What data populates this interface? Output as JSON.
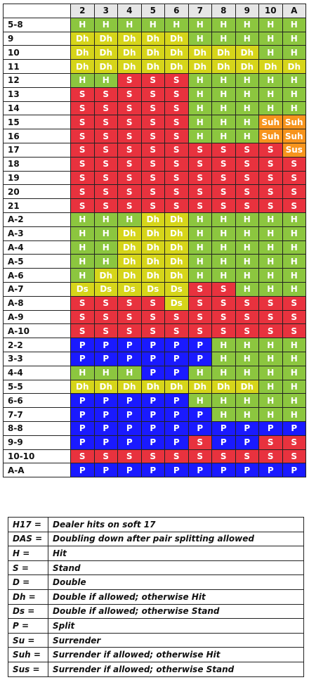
{
  "grid": {
    "dealer_cards": [
      "2",
      "3",
      "4",
      "5",
      "6",
      "7",
      "8",
      "9",
      "10",
      "A"
    ],
    "rows": [
      {
        "hand": "5-8",
        "cells": [
          "H",
          "H",
          "H",
          "H",
          "H",
          "H",
          "H",
          "H",
          "H",
          "H"
        ]
      },
      {
        "hand": "9",
        "cells": [
          "Dh",
          "Dh",
          "Dh",
          "Dh",
          "Dh",
          "H",
          "H",
          "H",
          "H",
          "H"
        ]
      },
      {
        "hand": "10",
        "cells": [
          "Dh",
          "Dh",
          "Dh",
          "Dh",
          "Dh",
          "Dh",
          "Dh",
          "Dh",
          "H",
          "H"
        ]
      },
      {
        "hand": "11",
        "cells": [
          "Dh",
          "Dh",
          "Dh",
          "Dh",
          "Dh",
          "Dh",
          "Dh",
          "Dh",
          "Dh",
          "Dh"
        ]
      },
      {
        "hand": "12",
        "cells": [
          "H",
          "H",
          "S",
          "S",
          "S",
          "H",
          "H",
          "H",
          "H",
          "H"
        ]
      },
      {
        "hand": "13",
        "cells": [
          "S",
          "S",
          "S",
          "S",
          "S",
          "H",
          "H",
          "H",
          "H",
          "H"
        ]
      },
      {
        "hand": "14",
        "cells": [
          "S",
          "S",
          "S",
          "S",
          "S",
          "H",
          "H",
          "H",
          "H",
          "H"
        ]
      },
      {
        "hand": "15",
        "cells": [
          "S",
          "S",
          "S",
          "S",
          "S",
          "H",
          "H",
          "H",
          "Suh",
          "Suh"
        ]
      },
      {
        "hand": "16",
        "cells": [
          "S",
          "S",
          "S",
          "S",
          "S",
          "H",
          "H",
          "H",
          "Suh",
          "Suh"
        ]
      },
      {
        "hand": "17",
        "cells": [
          "S",
          "S",
          "S",
          "S",
          "S",
          "S",
          "S",
          "S",
          "S",
          "Sus"
        ]
      },
      {
        "hand": "18",
        "cells": [
          "S",
          "S",
          "S",
          "S",
          "S",
          "S",
          "S",
          "S",
          "S",
          "S"
        ]
      },
      {
        "hand": "19",
        "cells": [
          "S",
          "S",
          "S",
          "S",
          "S",
          "S",
          "S",
          "S",
          "S",
          "S"
        ]
      },
      {
        "hand": "20",
        "cells": [
          "S",
          "S",
          "S",
          "S",
          "S",
          "S",
          "S",
          "S",
          "S",
          "S"
        ]
      },
      {
        "hand": "21",
        "cells": [
          "S",
          "S",
          "S",
          "S",
          "S",
          "S",
          "S",
          "S",
          "S",
          "S"
        ]
      },
      {
        "hand": "A-2",
        "cells": [
          "H",
          "H",
          "H",
          "Dh",
          "Dh",
          "H",
          "H",
          "H",
          "H",
          "H"
        ]
      },
      {
        "hand": "A-3",
        "cells": [
          "H",
          "H",
          "Dh",
          "Dh",
          "Dh",
          "H",
          "H",
          "H",
          "H",
          "H"
        ]
      },
      {
        "hand": "A-4",
        "cells": [
          "H",
          "H",
          "Dh",
          "Dh",
          "Dh",
          "H",
          "H",
          "H",
          "H",
          "H"
        ]
      },
      {
        "hand": "A-5",
        "cells": [
          "H",
          "H",
          "Dh",
          "Dh",
          "Dh",
          "H",
          "H",
          "H",
          "H",
          "H"
        ]
      },
      {
        "hand": "A-6",
        "cells": [
          "H",
          "Dh",
          "Dh",
          "Dh",
          "Dh",
          "H",
          "H",
          "H",
          "H",
          "H"
        ]
      },
      {
        "hand": "A-7",
        "cells": [
          "Ds",
          "Ds",
          "Ds",
          "Ds",
          "Ds",
          "S",
          "S",
          "H",
          "H",
          "H"
        ]
      },
      {
        "hand": "A-8",
        "cells": [
          "S",
          "S",
          "S",
          "S",
          "Ds",
          "S",
          "S",
          "S",
          "S",
          "S"
        ]
      },
      {
        "hand": "A-9",
        "cells": [
          "S",
          "S",
          "S",
          "S",
          "S",
          "S",
          "S",
          "S",
          "S",
          "S"
        ]
      },
      {
        "hand": "A-10",
        "cells": [
          "S",
          "S",
          "S",
          "S",
          "S",
          "S",
          "S",
          "S",
          "S",
          "S"
        ]
      },
      {
        "hand": "2-2",
        "cells": [
          "P",
          "P",
          "P",
          "P",
          "P",
          "P",
          "H",
          "H",
          "H",
          "H"
        ]
      },
      {
        "hand": "3-3",
        "cells": [
          "P",
          "P",
          "P",
          "P",
          "P",
          "P",
          "H",
          "H",
          "H",
          "H"
        ]
      },
      {
        "hand": "4-4",
        "cells": [
          "H",
          "H",
          "H",
          "P",
          "P",
          "H",
          "H",
          "H",
          "H",
          "H"
        ]
      },
      {
        "hand": "5-5",
        "cells": [
          "Dh",
          "Dh",
          "Dh",
          "Dh",
          "Dh",
          "Dh",
          "Dh",
          "Dh",
          "H",
          "H"
        ]
      },
      {
        "hand": "6-6",
        "cells": [
          "P",
          "P",
          "P",
          "P",
          "P",
          "H",
          "H",
          "H",
          "H",
          "H"
        ]
      },
      {
        "hand": "7-7",
        "cells": [
          "P",
          "P",
          "P",
          "P",
          "P",
          "P",
          "H",
          "H",
          "H",
          "H"
        ]
      },
      {
        "hand": "8-8",
        "cells": [
          "P",
          "P",
          "P",
          "P",
          "P",
          "P",
          "P",
          "P",
          "P",
          "P"
        ]
      },
      {
        "hand": "9-9",
        "cells": [
          "P",
          "P",
          "P",
          "P",
          "P",
          "S",
          "P",
          "P",
          "S",
          "S"
        ]
      },
      {
        "hand": "10-10",
        "cells": [
          "S",
          "S",
          "S",
          "S",
          "S",
          "S",
          "S",
          "S",
          "S",
          "S"
        ]
      },
      {
        "hand": "A-A",
        "cells": [
          "P",
          "P",
          "P",
          "P",
          "P",
          "P",
          "P",
          "P",
          "P",
          "P"
        ]
      }
    ]
  },
  "colors": {
    "H": "#8cc63f",
    "S": "#e8323e",
    "D": "#d6d51a",
    "P": "#1a1aff",
    "Su": "#f7941d"
  },
  "legend": [
    {
      "abbr": "H17 =",
      "desc": "Dealer hits on soft 17"
    },
    {
      "abbr": "DAS =",
      "desc": "Doubling down after pair splitting allowed"
    },
    {
      "abbr": "H =",
      "desc": "Hit"
    },
    {
      "abbr": "S =",
      "desc": "Stand"
    },
    {
      "abbr": "D =",
      "desc": "Double"
    },
    {
      "abbr": "Dh =",
      "desc": "Double if allowed; otherwise Hit"
    },
    {
      "abbr": "Ds =",
      "desc": "Double if allowed; otherwise Stand"
    },
    {
      "abbr": "P =",
      "desc": "Split"
    },
    {
      "abbr": "Su =",
      "desc": "Surrender"
    },
    {
      "abbr": "Suh =",
      "desc": "Surrender if allowed; otherwise Hit"
    },
    {
      "abbr": "Sus =",
      "desc": "Surrender if allowed; otherwise Stand"
    }
  ]
}
